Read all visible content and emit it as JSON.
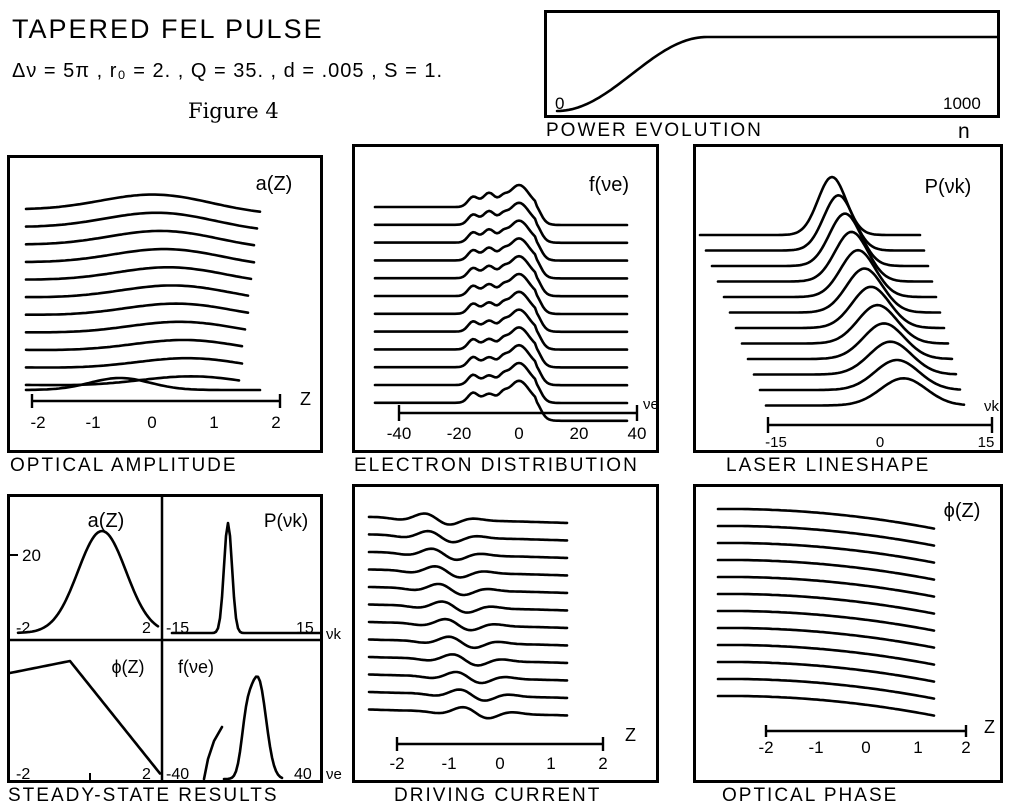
{
  "header": {
    "title": "TAPERED FEL PULSE",
    "params": "Δν = 5π , r₀ = 2. , Q = 35. , d = .005 , S = 1.",
    "figure_label": "Figure 4"
  },
  "power": {
    "caption": "POWER EVOLUTION",
    "n_label": "n",
    "x0": "0",
    "x1": "1000"
  },
  "panels": {
    "amp": {
      "caption": "OPTICAL AMPLITUDE",
      "fn": "a(Z)",
      "ticks": [
        "-2",
        "-1",
        "0",
        "1",
        "2"
      ],
      "axis_var": "Z"
    },
    "elec": {
      "caption": "ELECTRON DISTRIBUTION",
      "fn": "f(νe)",
      "ticks": [
        "-40",
        "-20",
        "0",
        "20",
        "40"
      ],
      "axis_var": "νe"
    },
    "laser": {
      "caption": "LASER LINESHAPE",
      "fn": "P(νk)",
      "ticks": [
        "-15",
        "0",
        "15"
      ],
      "axis_var": "νk"
    },
    "steady": {
      "caption": "STEADY-STATE RESULTS",
      "a_fn": "a(Z)",
      "a_val": "20",
      "a_x0": "-2",
      "a_x1": "2",
      "p_fn": "P(νk)",
      "p_x0": "-15",
      "p_x1": "15",
      "p_var": "νk",
      "phi_fn": "ϕ(Z)",
      "phi_x0": "-2",
      "phi_x1": "2",
      "f_fn": "f(νe)",
      "f_x0": "-40",
      "f_x1": "40",
      "f_var": "νe"
    },
    "drive": {
      "caption": "DRIVING CURRENT",
      "ticks": [
        "-2",
        "-1",
        "0",
        "1",
        "2"
      ],
      "axis_var": "Z"
    },
    "phase": {
      "caption": "OPTICAL PHASE",
      "fn": "ϕ(Z)",
      "ticks": [
        "-2",
        "-1",
        "0",
        "1",
        "2"
      ],
      "axis_var": "Z"
    }
  }
}
